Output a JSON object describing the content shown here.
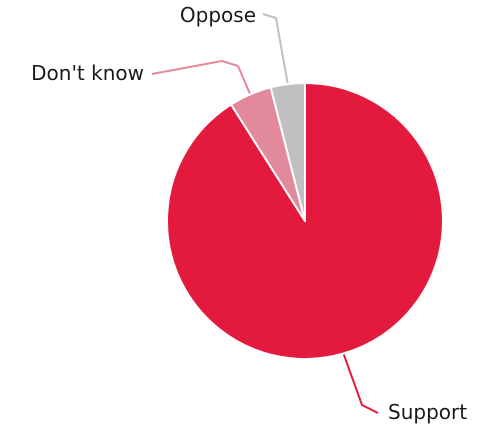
{
  "chart_data": {
    "type": "pie",
    "categories": [
      "Support",
      "Don't know",
      "Oppose"
    ],
    "values": [
      91,
      5,
      4
    ],
    "colors": {
      "Support": "#e31a3e",
      "Don't know": "#e28a9b",
      "Oppose": "#c0c0c2"
    },
    "leader_color": {
      "Support": "#e31a3e",
      "Don't know": "#e28a9b",
      "Oppose": "#c0c0c2"
    },
    "slice_border": "#ffffff",
    "start_angle": "12 o'clock",
    "direction": "clockwise",
    "legend": "none"
  }
}
